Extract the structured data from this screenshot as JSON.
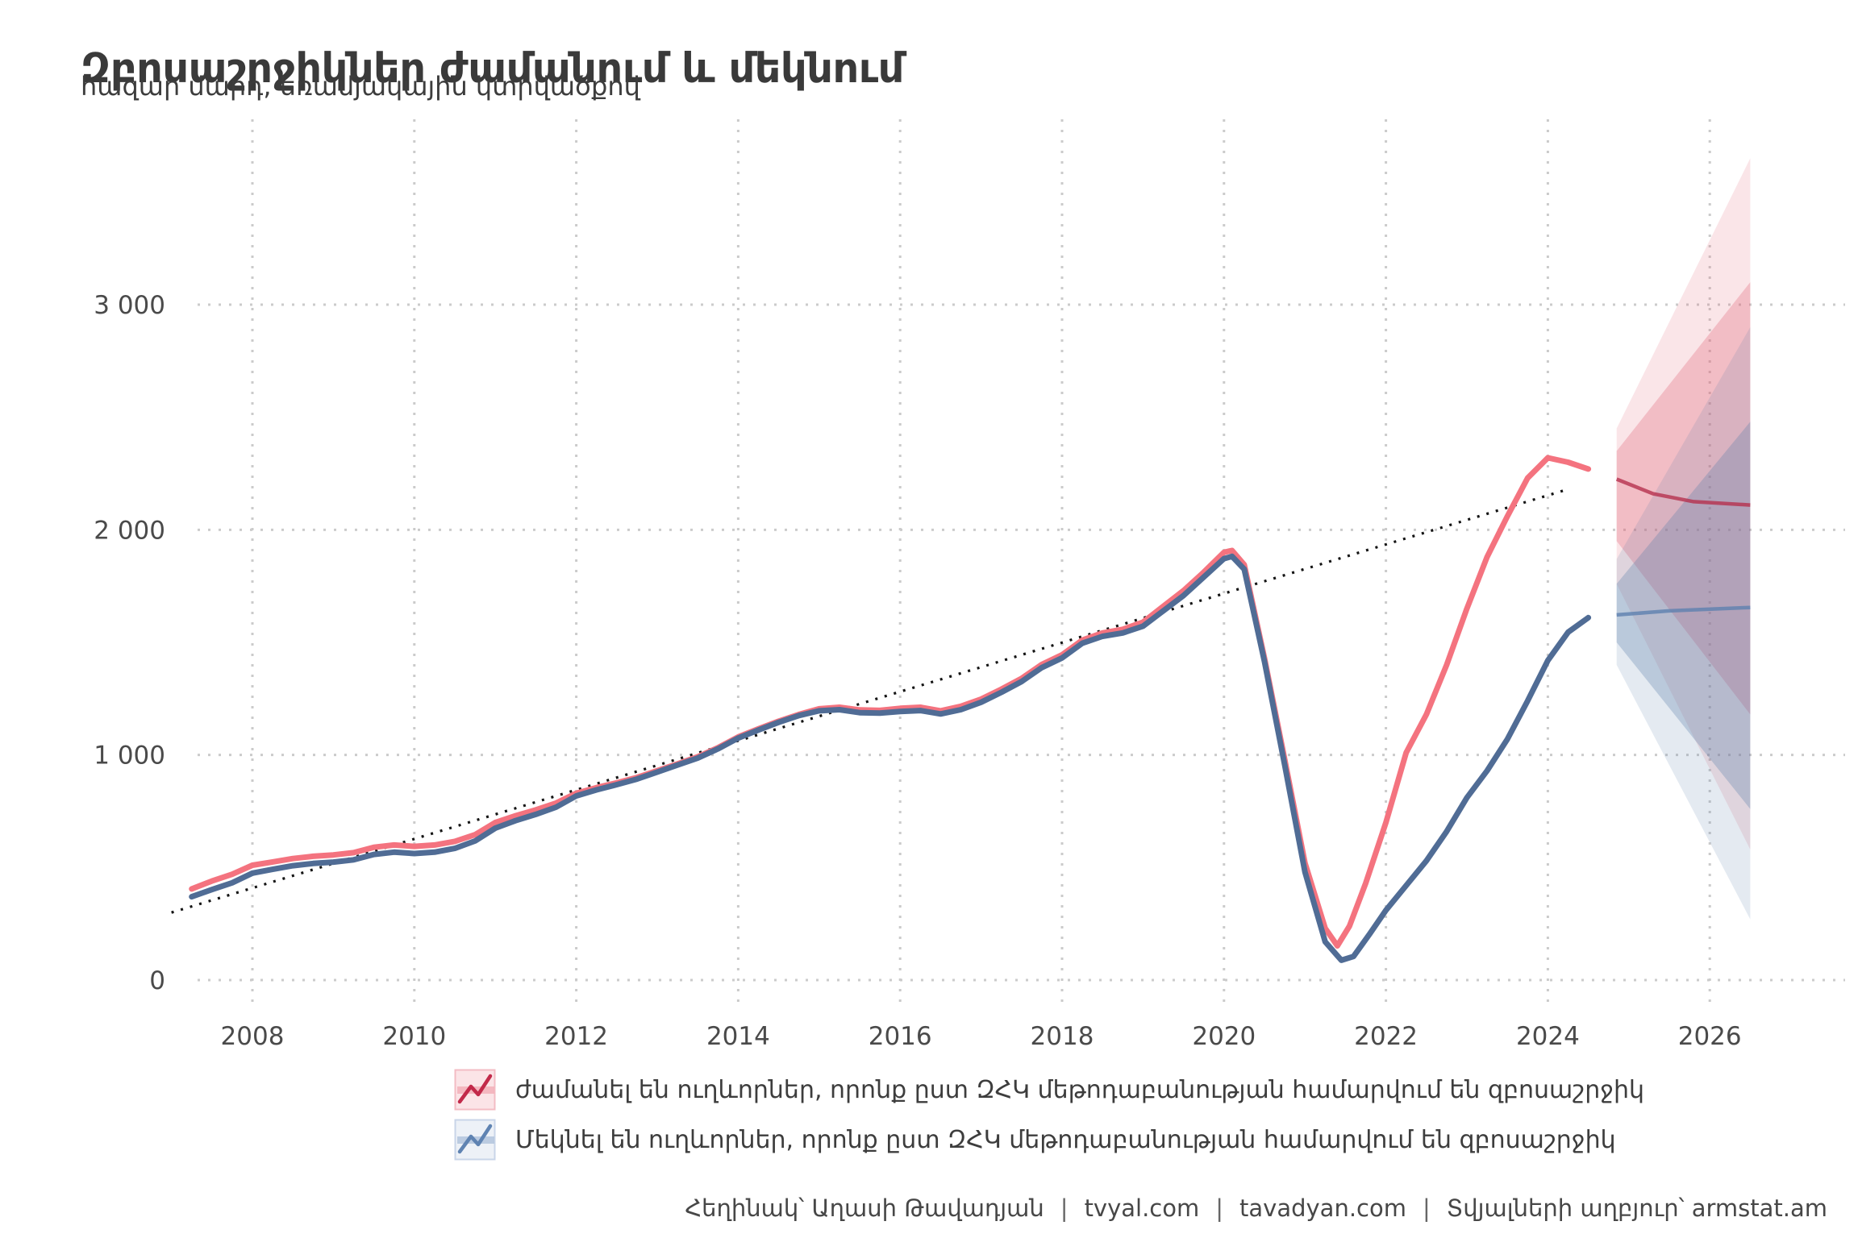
{
  "header": {
    "title": "Զբոսաշրջիկներ ժամանում և մեկնում",
    "subtitle": "հազար մարդ, եռամյակային կտրվածքով"
  },
  "chart_data": {
    "type": "line",
    "title": "Զբոսաշրջիկներ ժամանում և մեկնում",
    "subtitle": "հազար մարդ, եռամյակային կտրվածքով",
    "xlabel": "",
    "ylabel": "",
    "grid": "dotted",
    "legend_position": "bottom",
    "x_range": [
      2006.9,
      2026.9
    ],
    "y_range": [
      0,
      3800
    ],
    "x_ticks": [
      2008,
      2010,
      2012,
      2014,
      2016,
      2018,
      2020,
      2022,
      2024,
      2026
    ],
    "y_ticks": [
      {
        "value": 0,
        "label": "0"
      },
      {
        "value": 1000,
        "label": "1 000"
      },
      {
        "value": 2000,
        "label": "2 000"
      },
      {
        "value": 3000,
        "label": "3 000"
      }
    ],
    "series": [
      {
        "id": "arrivals",
        "name": "ժամանել են ուղևորներ, որոնք ըստ ԶՀԿ մեթոդաբանության համարվում են զբոսաշրջիկ",
        "color": "#F4737F",
        "points": [
          [
            2007.25,
            405
          ],
          [
            2007.5,
            440
          ],
          [
            2007.75,
            470
          ],
          [
            2008,
            510
          ],
          [
            2008.25,
            525
          ],
          [
            2008.5,
            540
          ],
          [
            2008.75,
            550
          ],
          [
            2009,
            556
          ],
          [
            2009.25,
            566
          ],
          [
            2009.5,
            590
          ],
          [
            2009.75,
            600
          ],
          [
            2010,
            594
          ],
          [
            2010.25,
            600
          ],
          [
            2010.5,
            616
          ],
          [
            2010.75,
            646
          ],
          [
            2011,
            700
          ],
          [
            2011.25,
            730
          ],
          [
            2011.5,
            756
          ],
          [
            2011.75,
            786
          ],
          [
            2012,
            830
          ],
          [
            2012.25,
            855
          ],
          [
            2012.5,
            876
          ],
          [
            2012.75,
            900
          ],
          [
            2013,
            930
          ],
          [
            2013.25,
            960
          ],
          [
            2013.5,
            992
          ],
          [
            2013.75,
            1032
          ],
          [
            2014,
            1080
          ],
          [
            2014.25,
            1116
          ],
          [
            2014.5,
            1150
          ],
          [
            2014.75,
            1180
          ],
          [
            2015,
            1205
          ],
          [
            2015.25,
            1212
          ],
          [
            2015.5,
            1200
          ],
          [
            2015.75,
            1198
          ],
          [
            2016,
            1207
          ],
          [
            2016.25,
            1212
          ],
          [
            2016.5,
            1196
          ],
          [
            2016.75,
            1216
          ],
          [
            2017,
            1248
          ],
          [
            2017.25,
            1292
          ],
          [
            2017.5,
            1340
          ],
          [
            2017.75,
            1402
          ],
          [
            2018,
            1445
          ],
          [
            2018.25,
            1510
          ],
          [
            2018.5,
            1542
          ],
          [
            2018.75,
            1558
          ],
          [
            2019,
            1590
          ],
          [
            2019.25,
            1660
          ],
          [
            2019.5,
            1730
          ],
          [
            2019.75,
            1812
          ],
          [
            2020,
            1900
          ],
          [
            2020.1,
            1908
          ],
          [
            2020.25,
            1845
          ],
          [
            2020.5,
            1430
          ],
          [
            2020.75,
            980
          ],
          [
            2021,
            520
          ],
          [
            2021.25,
            230
          ],
          [
            2021.4,
            152
          ],
          [
            2021.55,
            240
          ],
          [
            2021.75,
            430
          ],
          [
            2022,
            700
          ],
          [
            2022.25,
            1010
          ],
          [
            2022.5,
            1180
          ],
          [
            2022.75,
            1400
          ],
          [
            2023,
            1650
          ],
          [
            2023.25,
            1880
          ],
          [
            2023.5,
            2060
          ],
          [
            2023.75,
            2230
          ],
          [
            2024,
            2320
          ],
          [
            2024.25,
            2300
          ],
          [
            2024.5,
            2270
          ]
        ]
      },
      {
        "id": "departures",
        "name": "Մեկնել են ուղևորներ, որոնք ըստ ԶՀԿ մեթոդաբանության համարվում են զբոսաշրջիկ",
        "color": "#506C95",
        "points": [
          [
            2007.25,
            370
          ],
          [
            2007.5,
            402
          ],
          [
            2007.75,
            432
          ],
          [
            2008,
            475
          ],
          [
            2008.25,
            492
          ],
          [
            2008.5,
            508
          ],
          [
            2008.75,
            518
          ],
          [
            2009,
            524
          ],
          [
            2009.25,
            534
          ],
          [
            2009.5,
            558
          ],
          [
            2009.75,
            568
          ],
          [
            2010,
            562
          ],
          [
            2010.25,
            568
          ],
          [
            2010.5,
            585
          ],
          [
            2010.75,
            618
          ],
          [
            2011,
            675
          ],
          [
            2011.25,
            708
          ],
          [
            2011.5,
            736
          ],
          [
            2011.75,
            768
          ],
          [
            2012,
            818
          ],
          [
            2012.25,
            845
          ],
          [
            2012.5,
            868
          ],
          [
            2012.75,
            893
          ],
          [
            2013,
            924
          ],
          [
            2013.25,
            955
          ],
          [
            2013.5,
            986
          ],
          [
            2013.75,
            1027
          ],
          [
            2014,
            1075
          ],
          [
            2014.25,
            1111
          ],
          [
            2014.5,
            1145
          ],
          [
            2014.75,
            1175
          ],
          [
            2015,
            1196
          ],
          [
            2015.25,
            1201
          ],
          [
            2015.5,
            1188
          ],
          [
            2015.75,
            1186
          ],
          [
            2016,
            1193
          ],
          [
            2016.25,
            1197
          ],
          [
            2016.5,
            1182
          ],
          [
            2016.75,
            1201
          ],
          [
            2017,
            1234
          ],
          [
            2017.25,
            1278
          ],
          [
            2017.5,
            1326
          ],
          [
            2017.75,
            1388
          ],
          [
            2018,
            1431
          ],
          [
            2018.25,
            1496
          ],
          [
            2018.5,
            1527
          ],
          [
            2018.75,
            1542
          ],
          [
            2019,
            1572
          ],
          [
            2019.25,
            1640
          ],
          [
            2019.5,
            1708
          ],
          [
            2019.75,
            1790
          ],
          [
            2020,
            1872
          ],
          [
            2020.1,
            1882
          ],
          [
            2020.25,
            1825
          ],
          [
            2020.5,
            1415
          ],
          [
            2020.75,
            955
          ],
          [
            2021,
            480
          ],
          [
            2021.25,
            170
          ],
          [
            2021.45,
            88
          ],
          [
            2021.6,
            105
          ],
          [
            2021.8,
            205
          ],
          [
            2022,
            310
          ],
          [
            2022.25,
            420
          ],
          [
            2022.5,
            530
          ],
          [
            2022.75,
            660
          ],
          [
            2023,
            810
          ],
          [
            2023.25,
            930
          ],
          [
            2023.5,
            1070
          ],
          [
            2023.75,
            1240
          ],
          [
            2024,
            1420
          ],
          [
            2024.25,
            1545
          ],
          [
            2024.5,
            1610
          ]
        ]
      }
    ],
    "trendline": {
      "style": "dotted",
      "color": "#141414",
      "points": [
        [
          2007.0,
          300
        ],
        [
          2024.2,
          2175
        ]
      ]
    },
    "forecasts": [
      {
        "series": "arrivals",
        "line_color": "#B5314E",
        "fill_color": "#E25F73",
        "center": [
          [
            2024.85,
            2225
          ],
          [
            2025.3,
            2160
          ],
          [
            2025.8,
            2125
          ],
          [
            2026.5,
            2110
          ]
        ],
        "inner": {
          "upper": [
            [
              2024.85,
              2350
            ],
            [
              2026.5,
              3100
            ]
          ],
          "lower": [
            [
              2024.85,
              1950
            ],
            [
              2026.5,
              1180
            ]
          ]
        },
        "outer": {
          "upper": [
            [
              2024.85,
              2450
            ],
            [
              2026.5,
              3650
            ]
          ],
          "lower": [
            [
              2024.85,
              1760
            ],
            [
              2026.5,
              580
            ]
          ]
        }
      },
      {
        "series": "departures",
        "line_color": "#5E81AF",
        "fill_color": "#5A7DAA",
        "center": [
          [
            2024.85,
            1622
          ],
          [
            2025.5,
            1640
          ],
          [
            2026.5,
            1655
          ]
        ],
        "inner": {
          "upper": [
            [
              2024.85,
              1760
            ],
            [
              2026.5,
              2480
            ]
          ],
          "lower": [
            [
              2024.85,
              1500
            ],
            [
              2026.5,
              760
            ]
          ]
        },
        "outer": {
          "upper": [
            [
              2024.85,
              1870
            ],
            [
              2026.5,
              2900
            ]
          ],
          "lower": [
            [
              2024.85,
              1400
            ],
            [
              2026.5,
              270
            ]
          ]
        }
      }
    ]
  },
  "legend": {
    "items": [
      {
        "label": "ժամանել են ուղևորներ, որոնք ըստ ԶՀԿ մեթոդաբանության համարվում են զբոսաշրջիկ",
        "swatch": {
          "box_fill": "#FBE4E7",
          "box_border": "#F3BCC4",
          "line_color": "#C22A4A",
          "bar_color": "#F2A9B3"
        }
      },
      {
        "label": "Մեկնել են ուղևորներ, որոնք ըստ ԶՀԿ մեթոդաբանության համարվում են զբոսաշրջիկ",
        "swatch": {
          "box_fill": "#EDF1F7",
          "box_border": "#C9D5E8",
          "line_color": "#5F83B2",
          "bar_color": "#A9BDD9"
        }
      }
    ]
  },
  "footer": {
    "separator": "|",
    "parts": [
      "Հեղինակ՝ Աղասի Թավադյան",
      "tvyal.com",
      "tavadyan.com",
      "Տվյալների աղբյուր՝ armstat.am"
    ]
  }
}
